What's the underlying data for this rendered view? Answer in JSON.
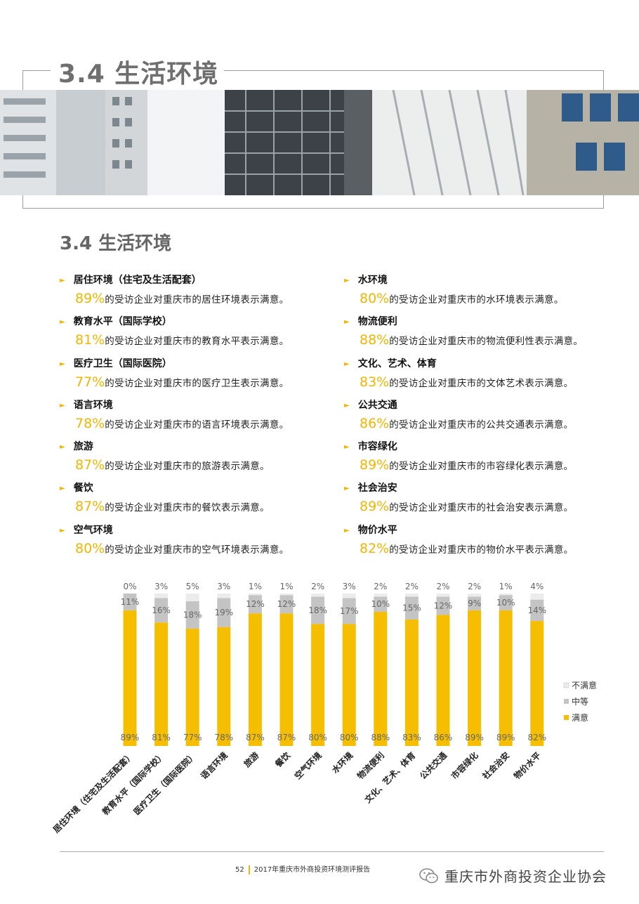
{
  "header": {
    "title": "3.4 生活环境"
  },
  "section": {
    "title": "3.4 生活环境"
  },
  "items_left": [
    {
      "label": "居住环境（住宅及生活配套）",
      "pct": "89%",
      "desc": "的受访企业对重庆市的居住环境表示满意。"
    },
    {
      "label": "教育水平（国际学校）",
      "pct": "81%",
      "desc": "的受访企业对重庆市的教育水平表示满意。"
    },
    {
      "label": "医疗卫生（国际医院）",
      "pct": "77%",
      "desc": "的受访企业对重庆市的医疗卫生表示满意。"
    },
    {
      "label": "语言环境",
      "pct": "78%",
      "desc": "的受访企业对重庆市的语言环境表示满意。"
    },
    {
      "label": "旅游",
      "pct": "87%",
      "desc": "的受访企业对重庆市的旅游表示满意。"
    },
    {
      "label": "餐饮",
      "pct": "87%",
      "desc": "的受访企业对重庆市的餐饮表示满意。"
    },
    {
      "label": "空气环境",
      "pct": "80%",
      "desc": "的受访企业对重庆市的空气环境表示满意。"
    }
  ],
  "items_right": [
    {
      "label": "水环境",
      "pct": "80%",
      "desc": "的受访企业对重庆市的水环境表示满意。"
    },
    {
      "label": "物流便利",
      "pct": "88%",
      "desc": "的受访企业对重庆市的物流便利性表示满意。"
    },
    {
      "label": "文化、艺术、体育",
      "pct": "83%",
      "desc": "的受访企业对重庆市的文体艺术表示满意。"
    },
    {
      "label": "公共交通",
      "pct": "86%",
      "desc": "的受访企业对重庆市的公共交通表示满意。"
    },
    {
      "label": "市容绿化",
      "pct": "89%",
      "desc": "的受访企业对重庆市的市容绿化表示满意。"
    },
    {
      "label": "社会治安",
      "pct": "89%",
      "desc": "的受访企业对重庆市的社会治安表示满意。"
    },
    {
      "label": "物价水平",
      "pct": "82%",
      "desc": "的受访企业对重庆市的物价水平表示满意。"
    }
  ],
  "chart_data": {
    "type": "bar",
    "stacked": true,
    "categories": [
      "居住环境（住宅及生活配套）",
      "教育水平（国际学校）",
      "医疗卫生（国际医院）",
      "语言环境",
      "旅游",
      "餐饮",
      "空气环境",
      "水环境",
      "物流便利",
      "文化、艺术、体育",
      "公共交通",
      "市容绿化",
      "社会治安",
      "物价水平"
    ],
    "series": [
      {
        "name": "满意",
        "color": "#f5be00",
        "values": [
          89,
          81,
          77,
          78,
          87,
          87,
          80,
          80,
          88,
          83,
          86,
          89,
          89,
          82
        ]
      },
      {
        "name": "中等",
        "color": "#c4c4c4",
        "values": [
          11,
          16,
          18,
          19,
          12,
          12,
          18,
          17,
          10,
          15,
          12,
          9,
          10,
          14
        ]
      },
      {
        "name": "不满意",
        "color": "#ececec",
        "values": [
          0,
          3,
          5,
          3,
          1,
          1,
          2,
          3,
          2,
          2,
          2,
          2,
          1,
          4
        ]
      }
    ],
    "ylim": [
      0,
      100
    ],
    "legend": "right",
    "grid": false
  },
  "footer": {
    "page": "52",
    "text": "2017年重庆市外商投资环境测评报告"
  },
  "wechat": {
    "name": "重庆市外商投资企业协会"
  }
}
